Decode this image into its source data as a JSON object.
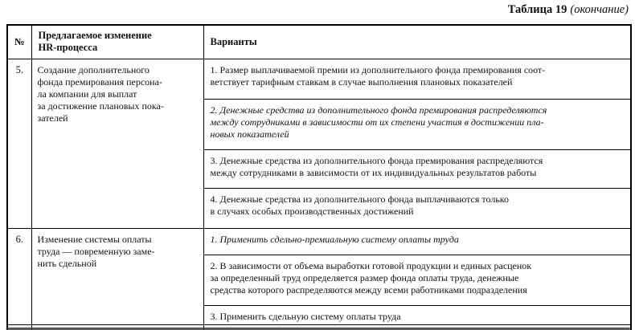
{
  "caption": {
    "title": "Таблица 19",
    "note": "(окончание)"
  },
  "table": {
    "headers": {
      "num": "№",
      "change": "Предлагаемое изменение\nHR-процесса",
      "variants": "Варианты"
    },
    "rows": [
      {
        "num": "5.",
        "change": "Создание дополнительного\nфонда премирования персона-\nла компании для выплат\nза достижение плановых пока-\nзателей",
        "variants": [
          {
            "text": "1. Размер выплачиваемой премии из дополнительного фонда премирования соот-\nветствует тарифным ставкам в случае выполнения плановых показателей",
            "emphasis": false
          },
          {
            "text": "2. Денежные средства из дополнительного фонда премирования распределяются\nмежду сотрудниками в зависимости от их степени участия в достижении пла-\nновых показателей",
            "emphasis": true
          },
          {
            "text": "3. Денежные средства из дополнительного фонда премирования распределяются\nмежду сотрудниками в зависимости от их индивидуальных результатов работы",
            "emphasis": false
          },
          {
            "text": "4. Денежные средства из дополнительного фонда выплачиваются только\nв случаях особых производственных достижений",
            "emphasis": false
          }
        ]
      },
      {
        "num": "6.",
        "change": "Изменение системы оплаты\nтруда — повременную заме-\nнить сдельной",
        "variants": [
          {
            "text": "1. Применить сдельно-премиальную систему оплаты труда",
            "emphasis": true
          },
          {
            "text": "2. В зависимости от объема выработки готовой продукции и единых расценок\nза определенный труд определяется размер фонда оплаты труда, денежные\nсредства которого распределяются между всеми работниками подразделения",
            "emphasis": false
          },
          {
            "text": "3. Применить сдельную систему оплаты труда",
            "emphasis": false
          }
        ]
      }
    ]
  },
  "colors": {
    "text": "#111111",
    "border": "#000000",
    "background": "#ffffff"
  }
}
